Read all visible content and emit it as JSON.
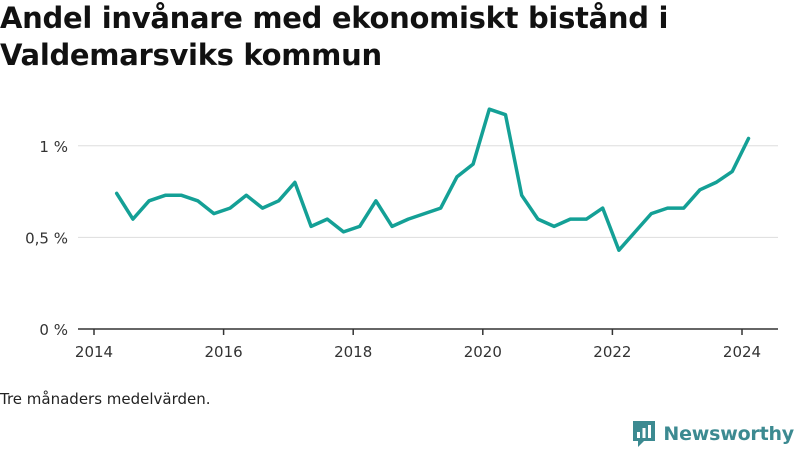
{
  "title": "Andel invånare med ekonomiskt bistånd i Valdemarsviks kommun",
  "footnote": "Tre månaders medelvärden.",
  "brand": {
    "name": "Newsworthy",
    "icon": "bar-chart-logo-icon",
    "color": "#3c8a91"
  },
  "colors": {
    "line": "#14a096",
    "grid": "#dddddd",
    "axis": "#333333"
  },
  "chart_data": {
    "type": "line",
    "ylim": [
      0,
      1.25
    ],
    "xlim": [
      2014,
      2024.6
    ],
    "yticks": [
      {
        "value": 0,
        "label": "0 %"
      },
      {
        "value": 0.5,
        "label": "0,5 %"
      },
      {
        "value": 1,
        "label": "1 %"
      }
    ],
    "xticks": [
      {
        "value": 2014,
        "label": "2014"
      },
      {
        "value": 2016,
        "label": "2016"
      },
      {
        "value": 2018,
        "label": "2018"
      },
      {
        "value": 2020,
        "label": "2020"
      },
      {
        "value": 2022,
        "label": "2022"
      },
      {
        "value": 2024,
        "label": "2024"
      }
    ],
    "grid": true,
    "series": [
      {
        "points": [
          [
            2014.35,
            0.74
          ],
          [
            2014.6,
            0.6
          ],
          [
            2014.85,
            0.7
          ],
          [
            2015.1,
            0.73
          ],
          [
            2015.35,
            0.73
          ],
          [
            2015.6,
            0.7
          ],
          [
            2015.85,
            0.63
          ],
          [
            2016.1,
            0.66
          ],
          [
            2016.35,
            0.73
          ],
          [
            2016.6,
            0.66
          ],
          [
            2016.85,
            0.7
          ],
          [
            2017.1,
            0.8
          ],
          [
            2017.35,
            0.56
          ],
          [
            2017.6,
            0.6
          ],
          [
            2017.85,
            0.53
          ],
          [
            2018.1,
            0.56
          ],
          [
            2018.35,
            0.7
          ],
          [
            2018.6,
            0.56
          ],
          [
            2018.85,
            0.6
          ],
          [
            2019.1,
            0.63
          ],
          [
            2019.35,
            0.66
          ],
          [
            2019.6,
            0.83
          ],
          [
            2019.85,
            0.9
          ],
          [
            2020.1,
            1.2
          ],
          [
            2020.35,
            1.17
          ],
          [
            2020.6,
            0.73
          ],
          [
            2020.85,
            0.6
          ],
          [
            2021.1,
            0.56
          ],
          [
            2021.35,
            0.6
          ],
          [
            2021.6,
            0.6
          ],
          [
            2021.85,
            0.66
          ],
          [
            2022.1,
            0.43
          ],
          [
            2022.35,
            0.53
          ],
          [
            2022.6,
            0.63
          ],
          [
            2022.85,
            0.66
          ],
          [
            2023.1,
            0.66
          ],
          [
            2023.35,
            0.76
          ],
          [
            2023.6,
            0.8
          ],
          [
            2023.85,
            0.86
          ],
          [
            2024.1,
            1.04
          ]
        ]
      }
    ]
  }
}
